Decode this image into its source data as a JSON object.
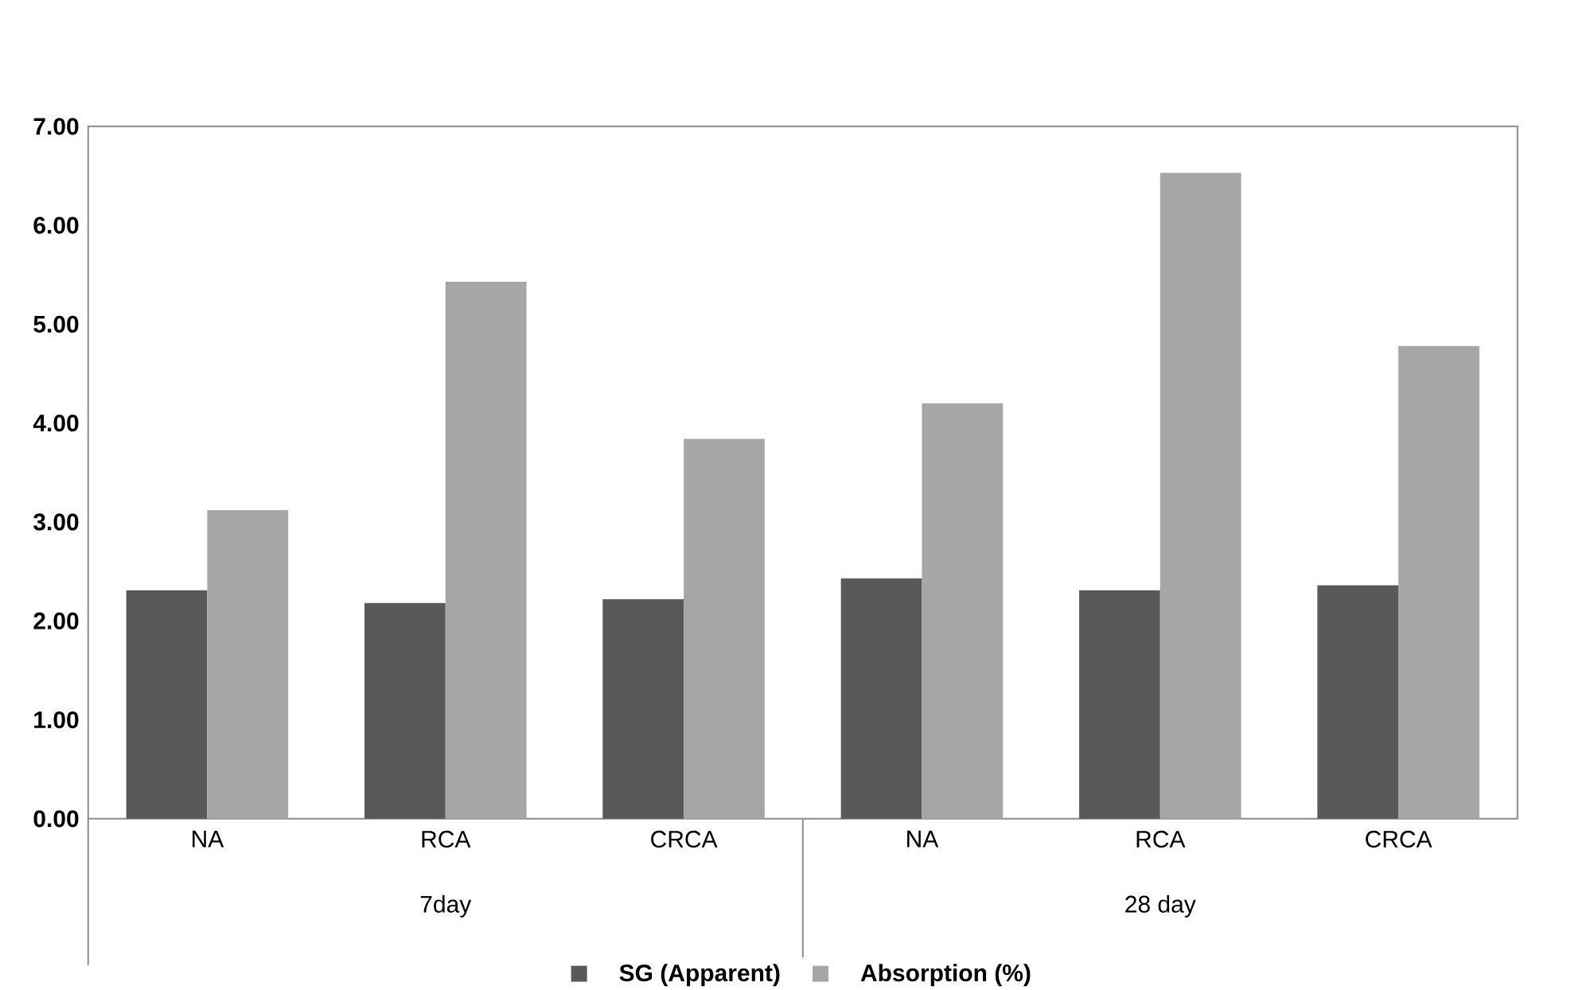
{
  "chart_data": {
    "type": "bar",
    "categories": [
      "NA",
      "RCA",
      "CRCA",
      "NA",
      "RCA",
      "CRCA"
    ],
    "series": [
      {
        "name": "SG (Apparent)",
        "color": "#595959",
        "values": [
          2.31,
          2.18,
          2.22,
          2.43,
          2.31,
          2.36
        ]
      },
      {
        "name": "Absorption (%)",
        "color": "#a6a6a6",
        "values": [
          3.12,
          5.43,
          3.84,
          4.2,
          6.53,
          4.78
        ]
      }
    ],
    "ylim": [
      0,
      7
    ],
    "yticks": [
      {
        "value": 0,
        "label": "0.00"
      },
      {
        "value": 1,
        "label": "1.00"
      },
      {
        "value": 2,
        "label": "2.00"
      },
      {
        "value": 3,
        "label": "3.00"
      },
      {
        "value": 4,
        "label": "4.00"
      },
      {
        "value": 5,
        "label": "5.00"
      },
      {
        "value": 6,
        "label": "6.00"
      },
      {
        "value": 7,
        "label": "7.00"
      }
    ],
    "annotations": [
      "7day",
      "28 day"
    ],
    "legend": "bottom"
  }
}
